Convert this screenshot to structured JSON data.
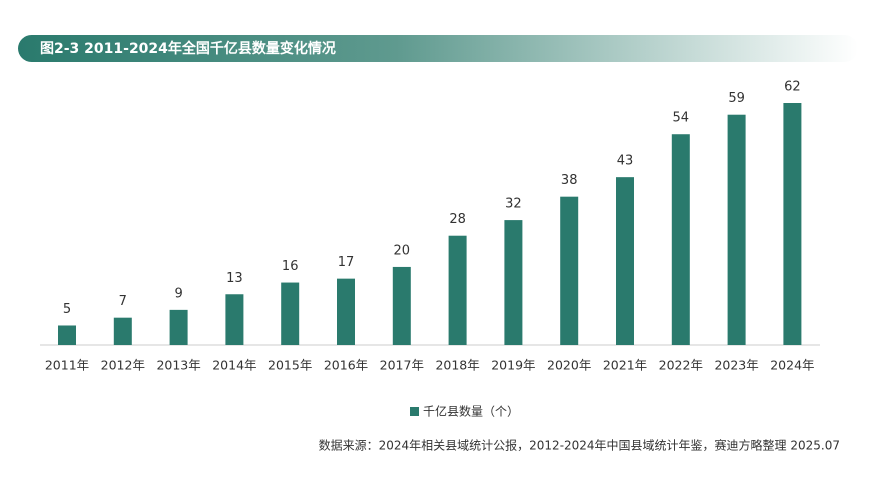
{
  "chart_data": {
    "type": "bar",
    "title": "图2-3 2011-2024年全国千亿县数量变化情况",
    "categories": [
      "2011年",
      "2012年",
      "2013年",
      "2014年",
      "2015年",
      "2016年",
      "2017年",
      "2018年",
      "2019年",
      "2020年",
      "2021年",
      "2022年",
      "2023年",
      "2024年"
    ],
    "series": [
      {
        "name": "千亿县数量（个）",
        "color": "#2a7a6d",
        "values": [
          5,
          7,
          9,
          13,
          16,
          17,
          20,
          28,
          32,
          38,
          43,
          54,
          59,
          62
        ]
      }
    ],
    "source": "数据来源：2024年相关县域统计公报，2012-2024年中国县域统计年鉴，赛迪方略整理 2025.07"
  }
}
